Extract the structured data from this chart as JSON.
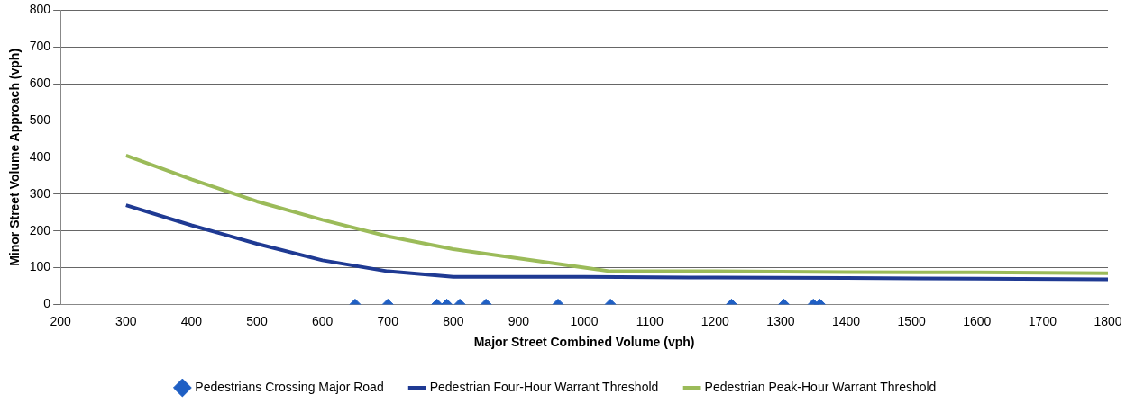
{
  "chart_data": {
    "type": "line",
    "xlabel": "Major Street Combined Volume (vph)",
    "ylabel": "Minor Street Volume Approach (vph)",
    "xlim": [
      200,
      1800
    ],
    "xticks": [
      200,
      300,
      400,
      500,
      600,
      700,
      800,
      900,
      1000,
      1100,
      1200,
      1300,
      1400,
      1500,
      1600,
      1700,
      1800
    ],
    "ylim": [
      0,
      800
    ],
    "yticks": [
      0,
      100,
      200,
      300,
      400,
      500,
      600,
      700,
      800
    ],
    "grid": "y",
    "legend": "bottom",
    "series": [
      {
        "name": "Pedestrians Crossing Major Road",
        "type": "scatter",
        "marker": "diamond",
        "color": "#1f5fc4",
        "x": [
          650,
          700,
          775,
          790,
          810,
          850,
          960,
          1040,
          1225,
          1305,
          1350,
          1360
        ],
        "values": [
          0,
          0,
          0,
          0,
          0,
          0,
          0,
          0,
          0,
          0,
          0,
          0
        ]
      },
      {
        "name": "Pedestrian Four-Hour Warrant Threshold",
        "type": "line",
        "color": "#1f3a93",
        "x": [
          300,
          400,
          500,
          600,
          700,
          800,
          900,
          1000,
          1200,
          1400,
          1600,
          1800
        ],
        "values": [
          270,
          215,
          165,
          120,
          90,
          75,
          75,
          75,
          73,
          72,
          70,
          68
        ]
      },
      {
        "name": "Pedestrian Peak-Hour Warrant Threshold",
        "type": "line",
        "color": "#9bbb59",
        "x": [
          300,
          400,
          500,
          600,
          700,
          800,
          900,
          1000,
          1040,
          1200,
          1400,
          1600,
          1800
        ],
        "values": [
          405,
          340,
          280,
          230,
          185,
          150,
          125,
          100,
          90,
          90,
          88,
          87,
          85
        ]
      }
    ]
  }
}
